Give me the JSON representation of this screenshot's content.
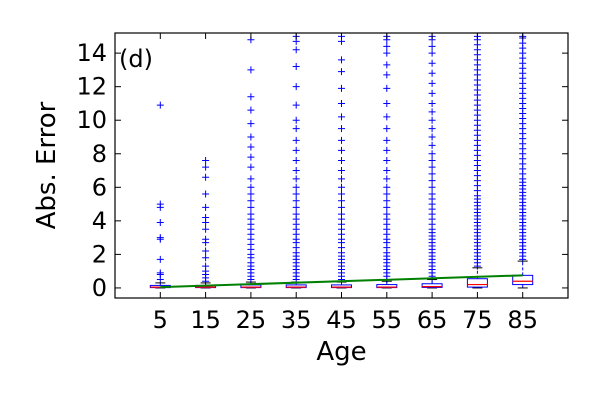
{
  "chart_data": {
    "type": "box",
    "panel_label": "(d)",
    "xlabel": "Age",
    "ylabel": "Abs. Error",
    "categories": [
      "5",
      "15",
      "25",
      "35",
      "45",
      "55",
      "65",
      "75",
      "85"
    ],
    "xlim": [
      -5,
      95
    ],
    "ylim": [
      -0.6,
      15.2
    ],
    "yticks": [
      0,
      2,
      4,
      6,
      8,
      10,
      12,
      14
    ],
    "grid": false,
    "boxes": [
      {
        "x": 5,
        "whisker_low": 0,
        "q1": 0.02,
        "median": 0.05,
        "q3": 0.15,
        "whisker_high": 0.3
      },
      {
        "x": 15,
        "whisker_low": 0,
        "q1": 0.02,
        "median": 0.05,
        "q3": 0.15,
        "whisker_high": 0.3
      },
      {
        "x": 25,
        "whisker_low": 0,
        "q1": 0.02,
        "median": 0.05,
        "q3": 0.18,
        "whisker_high": 0.35
      },
      {
        "x": 35,
        "whisker_low": 0,
        "q1": 0.02,
        "median": 0.05,
        "q3": 0.18,
        "whisker_high": 0.35
      },
      {
        "x": 45,
        "whisker_low": 0,
        "q1": 0.02,
        "median": 0.05,
        "q3": 0.18,
        "whisker_high": 0.35
      },
      {
        "x": 55,
        "whisker_low": 0,
        "q1": 0.02,
        "median": 0.05,
        "q3": 0.2,
        "whisker_high": 0.4
      },
      {
        "x": 65,
        "whisker_low": 0,
        "q1": 0.03,
        "median": 0.08,
        "q3": 0.25,
        "whisker_high": 0.5
      },
      {
        "x": 75,
        "whisker_low": 0,
        "q1": 0.05,
        "median": 0.2,
        "q3": 0.55,
        "whisker_high": 1.2
      },
      {
        "x": 85,
        "whisker_low": 0,
        "q1": 0.2,
        "median": 0.4,
        "q3": 0.75,
        "whisker_high": 1.6
      }
    ],
    "outliers": [
      {
        "x": 5,
        "values": [
          0.5,
          0.8,
          0.9,
          1.7,
          2.9,
          3.0,
          3.9,
          4.8,
          5.0,
          10.9
        ]
      },
      {
        "x": 15,
        "values": [
          0.4,
          0.6,
          0.8,
          1.0,
          1.3,
          1.8,
          2.2,
          2.7,
          2.9,
          3.5,
          3.9,
          4.2,
          4.8,
          5.6,
          6.6,
          7.2,
          7.6
        ]
      },
      {
        "x": 25,
        "values": [
          0.5,
          0.7,
          0.9,
          1.1,
          1.3,
          1.5,
          1.8,
          2.0,
          2.3,
          2.6,
          2.9,
          3.2,
          3.5,
          3.8,
          4.1,
          4.4,
          4.8,
          5.2,
          5.6,
          6.0,
          6.5,
          7.2,
          7.8,
          8.4,
          9.0,
          9.8,
          10.6,
          11.4,
          13.0,
          14.8
        ]
      },
      {
        "x": 35,
        "values": [
          0.5,
          0.7,
          0.9,
          1.1,
          1.3,
          1.5,
          1.7,
          1.9,
          2.1,
          2.4,
          2.7,
          2.9,
          3.2,
          3.5,
          3.8,
          4.1,
          4.4,
          4.8,
          5.2,
          5.6,
          6.0,
          6.5,
          7.0,
          7.6,
          8.2,
          8.8,
          9.5,
          10.0,
          10.9,
          12.0,
          13.2,
          14.2,
          14.7,
          15.0
        ]
      },
      {
        "x": 45,
        "values": [
          0.5,
          0.7,
          0.9,
          1.1,
          1.3,
          1.5,
          1.7,
          1.9,
          2.1,
          2.4,
          2.7,
          2.9,
          3.2,
          3.5,
          3.8,
          4.1,
          4.4,
          4.8,
          5.2,
          5.6,
          6.0,
          6.5,
          7.0,
          7.6,
          8.2,
          8.8,
          9.5,
          10.2,
          11.0,
          11.9,
          12.9,
          13.6,
          14.7,
          15.0
        ]
      },
      {
        "x": 55,
        "values": [
          0.5,
          0.7,
          0.9,
          1.1,
          1.3,
          1.5,
          1.7,
          1.9,
          2.1,
          2.4,
          2.7,
          2.9,
          3.2,
          3.5,
          3.8,
          4.1,
          4.4,
          4.8,
          5.2,
          5.6,
          6.0,
          6.5,
          7.0,
          7.6,
          8.2,
          8.8,
          9.5,
          10.2,
          11.0,
          11.9,
          12.7,
          13.3,
          14.0,
          14.4,
          14.8,
          15.0
        ]
      },
      {
        "x": 65,
        "values": [
          0.5,
          0.7,
          0.9,
          1.1,
          1.3,
          1.5,
          1.7,
          1.9,
          2.1,
          2.3,
          2.5,
          2.7,
          2.9,
          3.1,
          3.3,
          3.5,
          3.8,
          4.1,
          4.4,
          4.7,
          5.0,
          5.3,
          5.6,
          6.0,
          6.4,
          6.8,
          7.2,
          7.6,
          8.0,
          8.5,
          9.0,
          9.5,
          10.0,
          10.5,
          11.0,
          11.6,
          12.2,
          12.8,
          13.4,
          14.0,
          14.4,
          14.8,
          15.0
        ]
      },
      {
        "x": 75,
        "values": [
          1.3,
          1.5,
          1.7,
          1.9,
          2.1,
          2.3,
          2.5,
          2.7,
          2.9,
          3.1,
          3.3,
          3.5,
          3.7,
          3.9,
          4.1,
          4.3,
          4.5,
          4.7,
          4.9,
          5.1,
          5.3,
          5.5,
          5.8,
          6.1,
          6.4,
          6.7,
          7.0,
          7.3,
          7.6,
          7.9,
          8.2,
          8.5,
          8.8,
          9.1,
          9.4,
          9.7,
          10.0,
          10.3,
          10.6,
          10.9,
          11.2,
          11.5,
          11.8,
          12.1,
          12.4,
          12.7,
          13.0,
          13.3,
          13.6,
          13.9,
          14.2,
          14.5,
          14.8,
          15.0
        ]
      },
      {
        "x": 85,
        "values": [
          1.7,
          1.9,
          2.1,
          2.3,
          2.5,
          2.7,
          2.9,
          3.1,
          3.3,
          3.5,
          3.7,
          3.9,
          4.1,
          4.3,
          4.5,
          4.7,
          4.9,
          5.1,
          5.3,
          5.5,
          5.7,
          5.9,
          6.1,
          6.3,
          6.5,
          6.8,
          7.1,
          7.4,
          7.7,
          8.0,
          8.3,
          8.6,
          8.9,
          9.2,
          9.5,
          9.8,
          10.1,
          10.4,
          10.7,
          11.0,
          11.3,
          11.6,
          11.9,
          12.2,
          12.5,
          12.8,
          13.1,
          13.4,
          13.7,
          14.0,
          14.3,
          14.6,
          14.9,
          15.0
        ]
      }
    ],
    "trend": {
      "x": [
        5,
        85
      ],
      "y": [
        0.05,
        0.75
      ]
    },
    "colors": {
      "box": "#0000ff",
      "median": "#ff0000",
      "outlier": "#0000ff",
      "trend": "#008000",
      "axis": "#000000"
    }
  }
}
